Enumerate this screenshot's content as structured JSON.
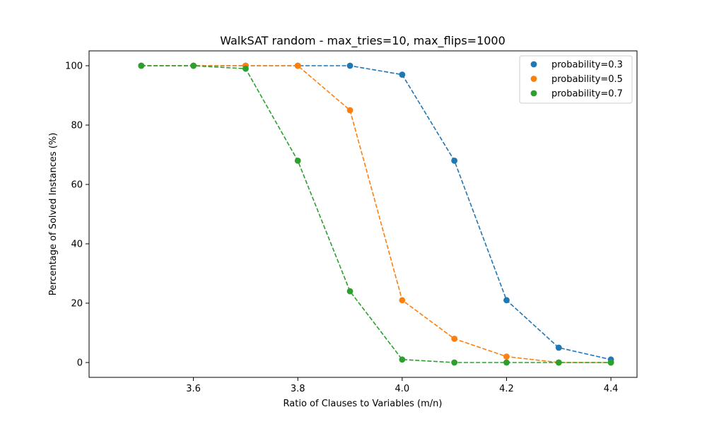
{
  "chart_data": {
    "type": "line",
    "title": "WalkSAT random - max_tries=10, max_flips=1000",
    "xlabel": "Ratio of Clauses to Variables (m/n)",
    "ylabel": "Percentage of Solved Instances (%)",
    "x": [
      3.5,
      3.6,
      3.7,
      3.8,
      3.9,
      4.0,
      4.1,
      4.2,
      4.3,
      4.4
    ],
    "xlim": [
      3.4,
      4.45
    ],
    "ylim": [
      -5,
      105
    ],
    "xticks": [
      3.6,
      3.8,
      4.0,
      4.2,
      4.4
    ],
    "xtick_labels": [
      "3.6",
      "3.8",
      "4.0",
      "4.2",
      "4.4"
    ],
    "yticks": [
      0,
      20,
      40,
      60,
      80,
      100
    ],
    "ytick_labels": [
      "0",
      "20",
      "40",
      "60",
      "80",
      "100"
    ],
    "grid": false,
    "legend_position": "top-right",
    "line_style": "dashed",
    "markers": "circle",
    "series": [
      {
        "name": "probability=0.3",
        "color": "#1f77b4",
        "values": [
          100,
          100,
          100,
          100,
          100,
          97,
          68,
          21,
          5,
          1
        ]
      },
      {
        "name": "probability=0.5",
        "color": "#ff7f0e",
        "values": [
          100,
          100,
          100,
          100,
          85,
          21,
          8,
          2,
          0,
          0
        ]
      },
      {
        "name": "probability=0.7",
        "color": "#2ca02c",
        "values": [
          100,
          100,
          99,
          68,
          24,
          1,
          0,
          0,
          0,
          0
        ]
      }
    ]
  }
}
